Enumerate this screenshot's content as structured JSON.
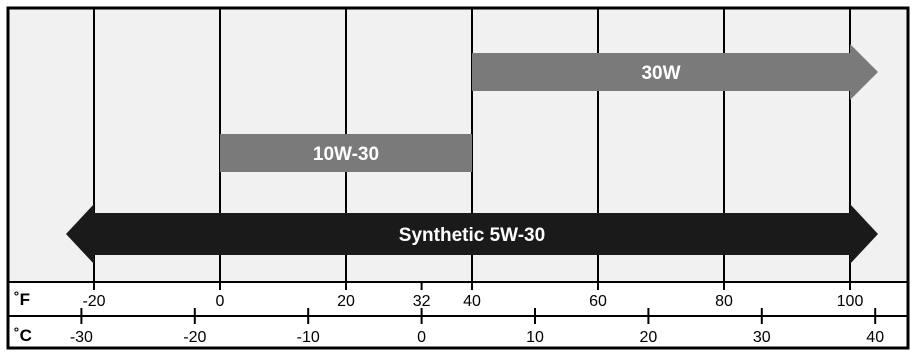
{
  "chart_data": {
    "type": "range-diagram",
    "fahrenheit": {
      "unit_label": "˚F",
      "ticks": [
        -20,
        0,
        20,
        32,
        40,
        60,
        80,
        100
      ],
      "tick_labels": [
        "-20",
        "0",
        "20",
        "32",
        "40",
        "60",
        "80",
        "100"
      ],
      "gridlines": [
        -20,
        0,
        20,
        40,
        60,
        80,
        100
      ]
    },
    "celsius": {
      "unit_label": "˚C",
      "ticks": [
        -30,
        -20,
        -10,
        0,
        10,
        20,
        30,
        40
      ],
      "tick_labels": [
        "-30",
        "-20",
        "-10",
        "0",
        "10",
        "20",
        "30",
        "40"
      ]
    },
    "bars": [
      {
        "label": "30W",
        "from_f": 40,
        "to_f": 100,
        "arrow_left": false,
        "arrow_right": true,
        "color": "#7a7a7a"
      },
      {
        "label": "10W-30",
        "from_f": 0,
        "to_f": 40,
        "arrow_left": false,
        "arrow_right": false,
        "color": "#7a7a7a"
      },
      {
        "label": "Synthetic 5W-30",
        "from_f": -20,
        "to_f": 100,
        "arrow_left": true,
        "arrow_right": true,
        "color": "#1a1a1a"
      }
    ],
    "colors": {
      "background": "#f1f1f1",
      "grid": "#000000",
      "border": "#000000"
    }
  }
}
